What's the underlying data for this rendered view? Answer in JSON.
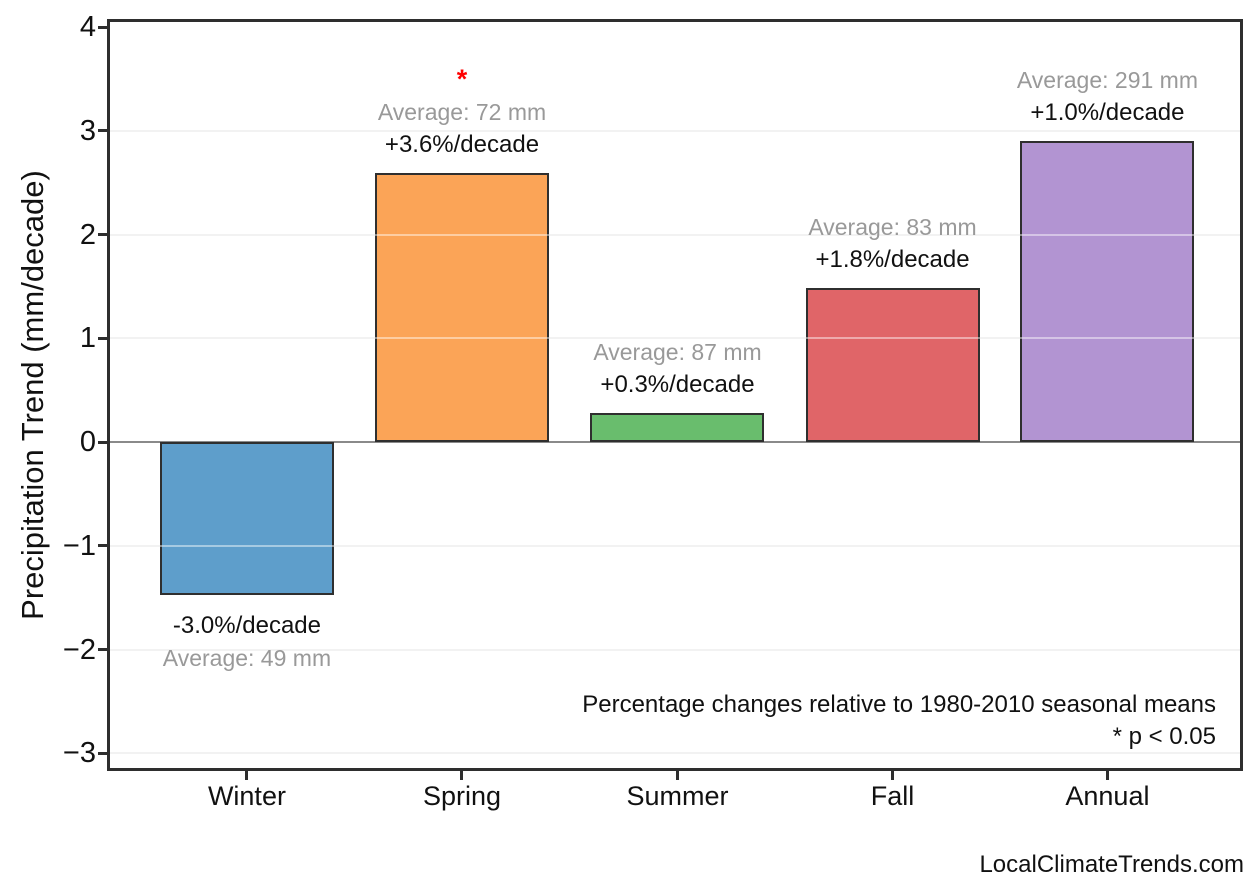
{
  "chart_data": {
    "type": "bar",
    "title": "",
    "xlabel": "",
    "ylabel": "Precipitation Trend (mm/decade)",
    "categories": [
      "Winter",
      "Spring",
      "Summer",
      "Fall",
      "Annual"
    ],
    "values_mm_per_decade": [
      -1.47,
      2.59,
      0.28,
      1.49,
      2.9
    ],
    "percent_labels": [
      "-3.0%/decade",
      "+3.6%/decade",
      "+0.3%/decade",
      "+1.8%/decade",
      "+1.0%/decade"
    ],
    "average_labels": [
      "Average: 49 mm",
      "Average: 72 mm",
      "Average: 87 mm",
      "Average: 83 mm",
      "Average: 291 mm"
    ],
    "averages_mm": [
      49,
      72,
      87,
      83,
      291
    ],
    "percent_per_decade": [
      -3.0,
      3.6,
      0.3,
      1.8,
      1.0
    ],
    "significant": [
      false,
      true,
      false,
      false,
      false
    ],
    "significance_marker": "*",
    "bar_colors": [
      "#5E9ECB",
      "#FBA457",
      "#69BD6D",
      "#E06568",
      "#B294D2"
    ],
    "ylim": [
      -3.14,
      4.05
    ],
    "yticks": [
      4,
      3,
      2,
      1,
      0,
      -1,
      -2,
      -3
    ],
    "ytick_labels": [
      "4",
      "3",
      "2",
      "1",
      "0",
      "−1",
      "−2",
      "−3"
    ],
    "grid": true,
    "legend": "none",
    "note_line1": "Percentage changes relative to 1980-2010 seasonal means",
    "note_line2": "* p < 0.05",
    "watermark": "LocalClimateTrends.com"
  },
  "colors": {
    "background": "#FFFFFF",
    "spine": "#2E2E2E",
    "bar_edge": "#2F2F2F",
    "grid": "#E8E8E8",
    "grid_over_bar": "rgba(255,255,255,0.45)",
    "zero_line": "#8A8A8A",
    "text": "#111111",
    "muted_text": "#999999",
    "significance": "#FF0000"
  }
}
